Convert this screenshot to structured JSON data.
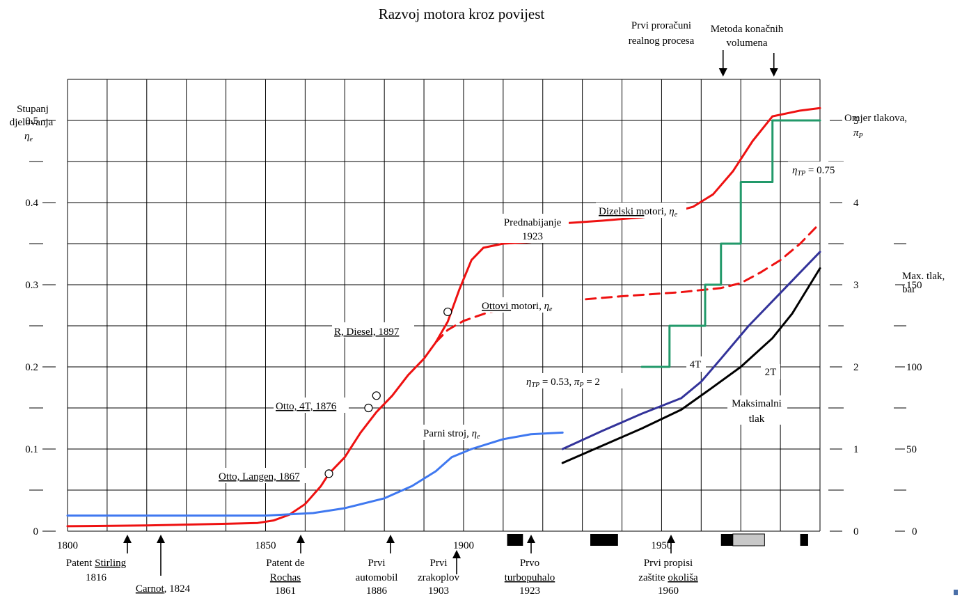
{
  "chart_data": {
    "type": "line",
    "title": "Razvoj motora kroz povijest",
    "x_axis": {
      "range": [
        1800,
        1990
      ],
      "ticks": [
        "1800",
        "1850",
        "1900",
        "1950"
      ]
    },
    "left_axis": {
      "label": [
        "Stupanj",
        "djelovanja",
        "η"
      ],
      "label_sub": "e",
      "range": [
        0,
        0.55
      ],
      "ticks": [
        "0",
        "0.1",
        "0.2",
        "0.3",
        "0.4",
        "0.5"
      ]
    },
    "right_axis": {
      "label": [
        "Omjer tlakova,",
        "π"
      ],
      "label_sub": "P",
      "ticks": [
        "0",
        "1",
        "2",
        "3",
        "4",
        "5"
      ]
    },
    "far_right_axis": {
      "label": [
        "Max. tlak,",
        "bar"
      ],
      "ticks": [
        "50",
        "100",
        "150"
      ]
    },
    "series": [
      {
        "name": "Dizelski motori",
        "sub": "e",
        "color": "#ee1111",
        "style": "solid",
        "x": [
          1866,
          1870,
          1874,
          1878,
          1882,
          1886,
          1890,
          1893,
          1896,
          1899,
          1902,
          1905,
          1910,
          1917
        ],
        "y": [
          0.07,
          0.09,
          0.12,
          0.145,
          0.165,
          0.19,
          0.21,
          0.23,
          0.255,
          0.295,
          0.33,
          0.345,
          0.35,
          0.352
        ]
      },
      {
        "name": "Dizelski motori",
        "color": "#ee1111",
        "style": "solid",
        "x": [
          1926,
          1935,
          1945,
          1952,
          1958,
          1963,
          1968,
          1973,
          1978,
          1985,
          1990
        ],
        "y": [
          0.375,
          0.378,
          0.382,
          0.387,
          0.395,
          0.41,
          0.438,
          0.475,
          0.505,
          0.512,
          0.515
        ]
      },
      {
        "name": "",
        "color": "#ee1111",
        "style": "solid",
        "x": [
          1800,
          1820,
          1840,
          1848,
          1852,
          1856,
          1860,
          1864,
          1866
        ],
        "y": [
          0.006,
          0.007,
          0.009,
          0.01,
          0.013,
          0.02,
          0.033,
          0.055,
          0.07
        ]
      },
      {
        "name": "Ottovi motori",
        "sub": "e",
        "color": "#ee1111",
        "style": "dashed",
        "x": [
          1893,
          1896,
          1900,
          1906,
          1915,
          1925,
          1940,
          1955,
          1965,
          1970,
          1975,
          1980,
          1985,
          1990
        ],
        "y": [
          0.23,
          0.245,
          0.256,
          0.266,
          0.274,
          0.28,
          0.286,
          0.291,
          0.296,
          0.302,
          0.315,
          0.33,
          0.35,
          0.375
        ]
      },
      {
        "name": "Parni stroj",
        "sub": "e",
        "color": "#3f78f0",
        "style": "solid",
        "x": [
          1800,
          1830,
          1850,
          1862,
          1870,
          1880,
          1887,
          1893,
          1897,
          1902,
          1910,
          1917,
          1925
        ],
        "y": [
          0.019,
          0.019,
          0.019,
          0.022,
          0.028,
          0.04,
          0.055,
          0.073,
          0.09,
          0.1,
          0.112,
          0.118,
          0.12
        ]
      },
      {
        "name": "4T",
        "color": "#33339a",
        "style": "solid",
        "x": [
          1925,
          1935,
          1945,
          1955,
          1960,
          1965,
          1972,
          1980,
          1990
        ],
        "y": [
          0.1,
          0.122,
          0.143,
          0.162,
          0.182,
          0.21,
          0.25,
          0.29,
          0.34
        ]
      },
      {
        "name": "2T",
        "color": "#000000",
        "style": "solid",
        "x": [
          1925,
          1935,
          1945,
          1955,
          1962,
          1970,
          1978,
          1983,
          1990
        ],
        "y": [
          0.083,
          0.104,
          0.125,
          0.148,
          0.172,
          0.2,
          0.235,
          0.265,
          0.32
        ]
      },
      {
        "name": "Omjer tlakova",
        "color": "#22996a",
        "style": "step",
        "x": [
          1945,
          1952,
          1952,
          1961,
          1961,
          1965,
          1965,
          1970,
          1970,
          1978,
          1978,
          1985,
          1985,
          1990
        ],
        "y": [
          0.2,
          0.2,
          0.25,
          0.25,
          0.3,
          0.3,
          0.35,
          0.35,
          0.425,
          0.425,
          0.5,
          0.5,
          0.5,
          0.5
        ]
      }
    ],
    "markers": [
      {
        "x": 1866,
        "y": 0.07,
        "label": "Otto, Langen, 1867"
      },
      {
        "x": 1876,
        "y": 0.15,
        "label": ""
      },
      {
        "x": 1878,
        "y": 0.165,
        "label": "Otto, 4T, 1876"
      },
      {
        "x": 1896,
        "y": 0.267,
        "label": "R, Diesel, 1897"
      }
    ],
    "annotations": {
      "prednabijanje": [
        "Prednabijanje",
        "1923"
      ],
      "diesel_label": "Dizelski motori, η",
      "otto_label": "Ottovi motori, η",
      "steam_label": "Parni stroj, η",
      "label_sub": "e",
      "eta_tp_high": "= 0.75",
      "eta_tp_low": "= 0.53,",
      "pi_p_low": "= 2",
      "eta_sym": "η",
      "pi_sym": "π",
      "tp_sub": "TP",
      "p_sub": "P",
      "four_t": "4T",
      "two_t": "2T",
      "max_tlak": [
        "Maksimalni",
        "tlak"
      ]
    },
    "top_events": [
      {
        "x": 1965,
        "lines": [
          "Prvi proračuni",
          "realnog procesa"
        ]
      },
      {
        "x": 1978,
        "lines": [
          "Metoda konačnih",
          "volumena"
        ]
      }
    ],
    "bottom_events": [
      {
        "x": 1816,
        "lines": [
          "Patent Stirling",
          "1816"
        ]
      },
      {
        "x": 1824,
        "lines": [
          "Carnot, 1824"
        ]
      },
      {
        "x": 1861,
        "lines": [
          "Patent de",
          "Rochas",
          "1861"
        ]
      },
      {
        "x": 1886,
        "lines": [
          "Prvi",
          "automobil",
          "1886"
        ]
      },
      {
        "x": 1903,
        "lines": [
          "Prvi",
          "zrakoplov",
          "1903"
        ]
      },
      {
        "x": 1923,
        "lines": [
          "Prvo",
          "turbopuhalo",
          "1923"
        ]
      },
      {
        "x": 1960,
        "lines": [
          "Prvi propisi",
          "zaštite okoliša",
          "1960"
        ]
      }
    ],
    "grid": true
  }
}
